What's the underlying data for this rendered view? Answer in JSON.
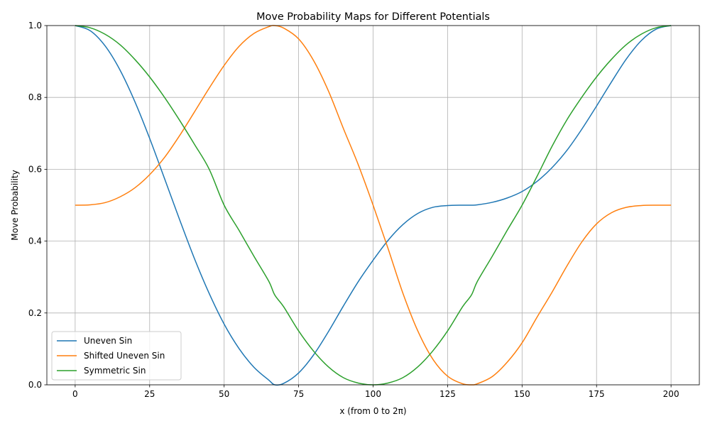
{
  "chart_data": {
    "type": "line",
    "title": "Move Probability Maps for Different Potentials",
    "xlabel": "x (from 0 to 2π)",
    "ylabel": "Move Probability",
    "xlim": [
      -9.5,
      209.5
    ],
    "ylim": [
      0,
      1
    ],
    "xticks": [
      0,
      25,
      50,
      75,
      100,
      125,
      150,
      175,
      200
    ],
    "yticks": [
      0.0,
      0.2,
      0.4,
      0.6,
      0.8,
      1.0
    ],
    "ytick_labels": [
      "0.0",
      "0.2",
      "0.4",
      "0.6",
      "0.8",
      "1.0"
    ],
    "grid": true,
    "legend_position": "lower-left",
    "x": [
      0,
      5,
      10,
      15,
      20,
      25,
      30,
      35,
      40,
      45,
      50,
      55,
      60,
      65,
      67,
      70,
      75,
      80,
      85,
      90,
      95,
      100,
      105,
      110,
      115,
      120,
      125,
      130,
      133,
      135,
      140,
      145,
      150,
      155,
      160,
      165,
      170,
      175,
      180,
      185,
      190,
      195,
      200
    ],
    "series": [
      {
        "name": "Uneven Sin",
        "color": "#1f77b4",
        "values": [
          1.0,
          0.986,
          0.944,
          0.877,
          0.789,
          0.686,
          0.574,
          0.461,
          0.352,
          0.254,
          0.169,
          0.101,
          0.049,
          0.013,
          0.0,
          0.004,
          0.033,
          0.083,
          0.148,
          0.219,
          0.287,
          0.347,
          0.402,
          0.446,
          0.477,
          0.494,
          0.499,
          0.5,
          0.5,
          0.501,
          0.508,
          0.52,
          0.538,
          0.566,
          0.604,
          0.652,
          0.711,
          0.776,
          0.843,
          0.907,
          0.958,
          0.99,
          1.0
        ]
      },
      {
        "name": "Shifted Uneven Sin",
        "color": "#ff7f0e",
        "values": [
          0.5,
          0.501,
          0.507,
          0.523,
          0.548,
          0.585,
          0.633,
          0.693,
          0.759,
          0.826,
          0.889,
          0.942,
          0.978,
          0.997,
          1.0,
          0.993,
          0.963,
          0.903,
          0.818,
          0.714,
          0.613,
          0.5,
          0.38,
          0.255,
          0.15,
          0.072,
          0.024,
          0.003,
          0.0,
          0.003,
          0.023,
          0.063,
          0.117,
          0.188,
          0.257,
          0.33,
          0.397,
          0.448,
          0.479,
          0.494,
          0.499,
          0.5,
          0.5
        ]
      },
      {
        "name": "Symmetric Sin",
        "color": "#2ca02c",
        "values": [
          1.0,
          0.994,
          0.976,
          0.947,
          0.906,
          0.857,
          0.8,
          0.737,
          0.67,
          0.6,
          0.5,
          0.43,
          0.358,
          0.288,
          0.25,
          0.217,
          0.15,
          0.094,
          0.05,
          0.02,
          0.005,
          0.0,
          0.005,
          0.02,
          0.05,
          0.094,
          0.15,
          0.217,
          0.25,
          0.288,
          0.358,
          0.43,
          0.5,
          0.58,
          0.663,
          0.737,
          0.8,
          0.857,
          0.906,
          0.947,
          0.976,
          0.994,
          1.0
        ]
      }
    ]
  }
}
